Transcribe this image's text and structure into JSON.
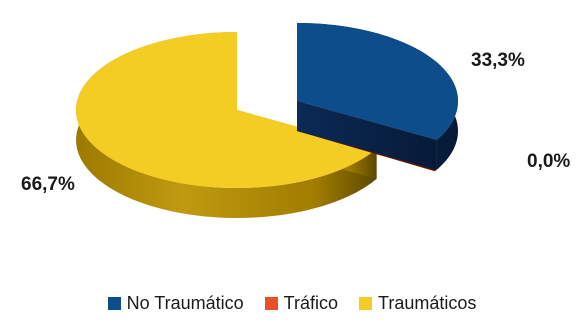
{
  "chart_data": {
    "type": "pie",
    "style": "3d-exploded",
    "categories": [
      "No Traumático",
      "Tráfico",
      "Traumáticos"
    ],
    "values": [
      33.3,
      0.0,
      66.7
    ],
    "data_labels": [
      "33,3%",
      "0,0%",
      "66,7%"
    ],
    "colors": [
      "#0e4d8c",
      "#e8502a",
      "#f4cd24"
    ],
    "legend_placement": "bottom",
    "title": ""
  }
}
